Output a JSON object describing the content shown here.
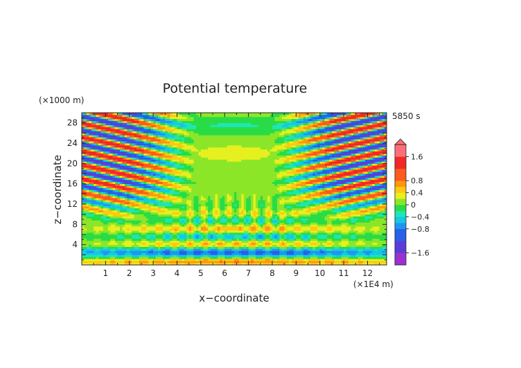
{
  "chart_data": {
    "type": "heatmap",
    "title": "Potential temperature",
    "xlabel": "x−coordinate",
    "ylabel": "z−coordinate",
    "x_unit": "(×1E4 m)",
    "y_unit": "(×1000 m)",
    "time_label": "5850 s",
    "xlim": [
      0,
      12.8
    ],
    "ylim": [
      0,
      30
    ],
    "x_ticks": [
      1,
      2,
      3,
      4,
      5,
      6,
      7,
      8,
      9,
      10,
      11,
      12
    ],
    "y_ticks": [
      4,
      8,
      12,
      16,
      20,
      24,
      28
    ],
    "colorbar": {
      "range": [
        -2,
        2
      ],
      "tick_values": [
        1.6,
        0.8,
        0.4,
        0,
        -0.4,
        -0.8,
        -1.6
      ],
      "tick_labels": [
        "1.6",
        "0.8",
        "0.4",
        "0",
        "−0.4",
        "−0.8",
        "−1.6"
      ],
      "levels": [
        {
          "from": -2.0,
          "to": -1.6,
          "color": "#9b30d0"
        },
        {
          "from": -1.6,
          "to": -1.2,
          "color": "#5a3cd8"
        },
        {
          "from": -1.2,
          "to": -0.8,
          "color": "#2860e8"
        },
        {
          "from": -0.8,
          "to": -0.6,
          "color": "#1e96f0"
        },
        {
          "from": -0.6,
          "to": -0.4,
          "color": "#14c8e6"
        },
        {
          "from": -0.4,
          "to": -0.2,
          "color": "#1ee6b4"
        },
        {
          "from": -0.2,
          "to": 0.0,
          "color": "#28dc46"
        },
        {
          "from": 0.0,
          "to": 0.2,
          "color": "#8ce628"
        },
        {
          "from": 0.2,
          "to": 0.4,
          "color": "#e6f01e"
        },
        {
          "from": 0.4,
          "to": 0.6,
          "color": "#ffc814"
        },
        {
          "from": 0.6,
          "to": 0.8,
          "color": "#ff960f"
        },
        {
          "from": 0.8,
          "to": 1.2,
          "color": "#ff5a1e"
        },
        {
          "from": 1.2,
          "to": 1.6,
          "color": "#f02828"
        },
        {
          "from": 1.6,
          "to": 2.0,
          "color": "#ff6e78"
        }
      ]
    }
  }
}
